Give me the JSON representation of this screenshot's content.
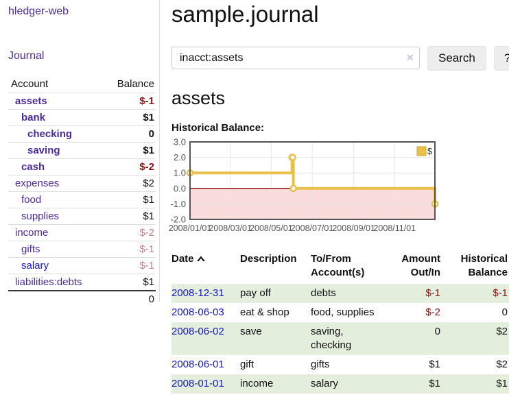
{
  "brand": "hledger-web",
  "sidebar": {
    "journal_label": "Journal",
    "header": {
      "account": "Account",
      "balance": "Balance"
    },
    "accounts": [
      {
        "name": "assets",
        "balance": "$-1"
      },
      {
        "name": "bank",
        "balance": "$1"
      },
      {
        "name": "checking",
        "balance": "0"
      },
      {
        "name": "saving",
        "balance": "$1"
      },
      {
        "name": "cash",
        "balance": "$-2"
      },
      {
        "name": "expenses",
        "balance": "$2"
      },
      {
        "name": "food",
        "balance": "$1"
      },
      {
        "name": "supplies",
        "balance": "$1"
      },
      {
        "name": "income",
        "balance": "$-2"
      },
      {
        "name": "gifts",
        "balance": "$-1"
      },
      {
        "name": "salary",
        "balance": "$-1"
      },
      {
        "name": "liabilities:debts",
        "balance": "$1"
      }
    ],
    "total": "0"
  },
  "header": {
    "title": "sample.journal"
  },
  "search": {
    "value": "inacct:assets",
    "clear_label": "×",
    "button_label": "Search",
    "help_label": "?"
  },
  "section": {
    "title": "assets",
    "chart_label": "Historical Balance:"
  },
  "chart_data": {
    "type": "line",
    "title": "Historical Balance:",
    "series": [
      {
        "name": "$",
        "points": [
          {
            "date": "2008-01-01",
            "day": 0,
            "value": 1
          },
          {
            "date": "2008-06-01",
            "day": 152,
            "value": 2
          },
          {
            "date": "2008-06-02",
            "day": 153,
            "value": 2
          },
          {
            "date": "2008-06-03",
            "day": 154,
            "value": 0
          },
          {
            "date": "2008-12-31",
            "day": 365,
            "value": -1
          }
        ]
      }
    ],
    "x_ticks": [
      {
        "day": 0,
        "label": "2008/01/01"
      },
      {
        "day": 60,
        "label": "2008/03/01"
      },
      {
        "day": 121,
        "label": "2008/05/01"
      },
      {
        "day": 182,
        "label": "2008/07/01"
      },
      {
        "day": 244,
        "label": "2008/09/01"
      },
      {
        "day": 305,
        "label": "2008/11/01"
      }
    ],
    "y_ticks": [
      {
        "value": 3,
        "label": "3.0"
      },
      {
        "value": 2,
        "label": "2.0"
      },
      {
        "value": 1,
        "label": "1.0"
      },
      {
        "value": 0,
        "label": "0.0"
      },
      {
        "value": -1,
        "label": "-1.0"
      },
      {
        "value": -2,
        "label": "-2.0"
      }
    ],
    "x_range_days": [
      0,
      365
    ],
    "y_range": [
      -2,
      3
    ],
    "legend": {
      "label": "$",
      "position": "top-right"
    },
    "colors": {
      "line": "#e9c04a",
      "marker_fill": "#ffffff",
      "legend_border": "#c9a22e",
      "negative_fill": "#fbdcdc",
      "zero_line": "#8b0000",
      "grid": "#e6e6e6",
      "border": "#555555",
      "tick_text": "#545454"
    }
  },
  "register": {
    "headers": {
      "date": "Date",
      "description": "Description",
      "tofrom1": "To/From",
      "tofrom2": "Account(s)",
      "amount1": "Amount",
      "amount2": "Out/In",
      "hist1": "Historical",
      "hist2": "Balance"
    },
    "rows": [
      {
        "date": "2008-12-31",
        "description": "pay off",
        "accounts": "debts",
        "amount": "$-1",
        "balance": "$-1"
      },
      {
        "date": "2008-06-03",
        "description": "eat & shop",
        "accounts": "food, supplies",
        "amount": "$-2",
        "balance": "0"
      },
      {
        "date": "2008-06-02",
        "description": "save",
        "accounts": "saving, checking",
        "amount": "0",
        "balance": "$2"
      },
      {
        "date": "2008-06-01",
        "description": "gift",
        "accounts": "gifts",
        "amount": "$1",
        "balance": "$2"
      },
      {
        "date": "2008-01-01",
        "description": "income",
        "accounts": "salary",
        "amount": "$1",
        "balance": "$1"
      }
    ]
  }
}
